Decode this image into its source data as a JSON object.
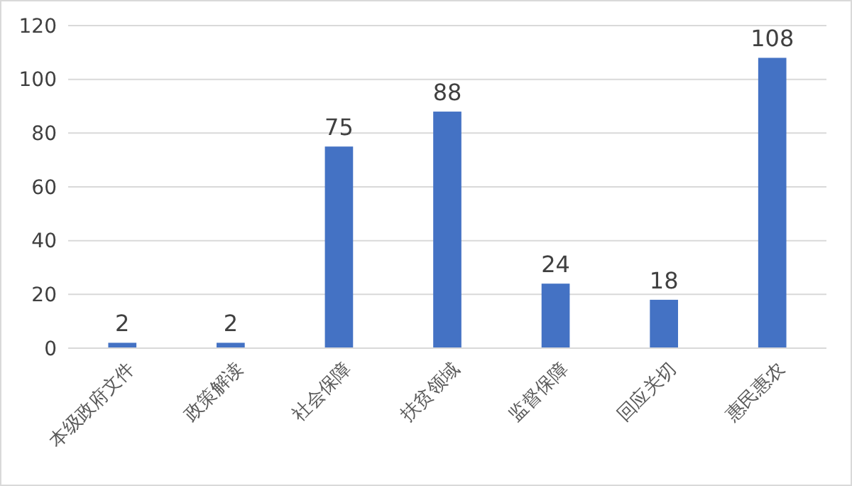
{
  "chart_data": {
    "type": "bar",
    "categories": [
      "本级政府文件",
      "政策解读",
      "社会保障",
      "扶贫领域",
      "监督保障",
      "回应关切",
      "惠民惠农"
    ],
    "values": [
      2,
      2,
      75,
      88,
      24,
      18,
      108
    ],
    "color": "#4472c4",
    "ylim": [
      0,
      120
    ],
    "yticks": [
      0,
      20,
      40,
      60,
      80,
      100,
      120
    ],
    "grid": "y",
    "data_labels": true
  }
}
